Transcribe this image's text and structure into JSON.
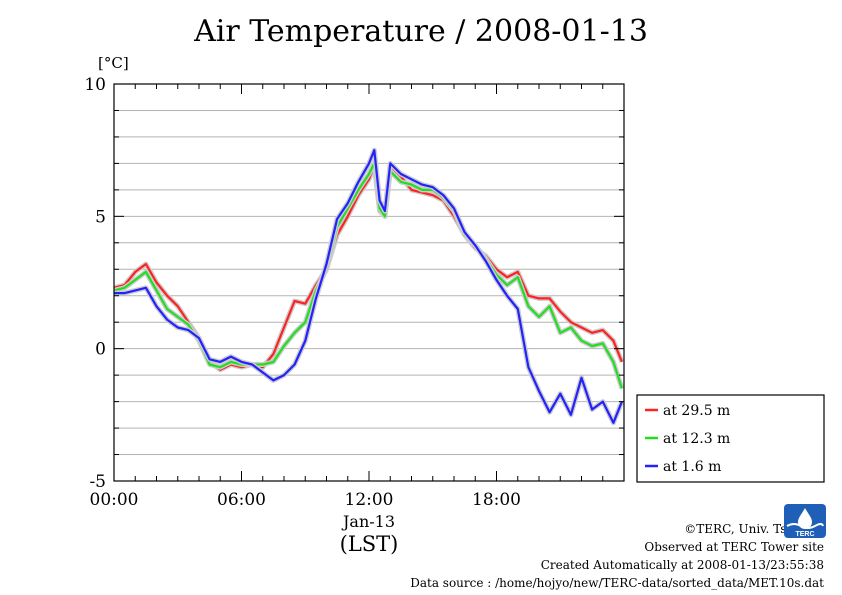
{
  "title": "Air Temperature / 2008-01-13",
  "ylabel": "[°C]",
  "footer": {
    "copyright": "©TERC, Univ. Tsukuba",
    "observed": "Observed at TERC Tower site",
    "created": "Created Automatically at 2008-01-13/23:55:38",
    "source": "Data source : /home/hojyo/new/TERC-data/sorted_data/MET.10s.dat"
  },
  "logo": {
    "icon": "terc-logo-icon",
    "text": "TERC",
    "color": "#1f5fb8"
  },
  "chart_data": {
    "type": "line",
    "xlim": [
      0,
      24
    ],
    "ylim": [
      -5,
      10
    ],
    "x_ticks": [
      0,
      6,
      12,
      18
    ],
    "x_tick_labels": [
      "00:00",
      "06:00",
      "12:00",
      "18:00"
    ],
    "x_date_label": "Jan-13",
    "x_unit_label": "(LST)",
    "y_ticks": [
      -5,
      0,
      5,
      10
    ],
    "y_tick_labels": [
      "-5",
      "0",
      "5",
      "10"
    ],
    "y_minor_step": 1,
    "grid": true,
    "legend_position": "right",
    "series": [
      {
        "name": "at 29.5 m",
        "color": "#ff2222",
        "x": [
          0,
          0.5,
          1,
          1.5,
          2,
          2.5,
          3,
          3.5,
          4,
          4.5,
          5,
          5.5,
          6,
          6.5,
          7,
          7.5,
          8,
          8.5,
          9,
          9.5,
          10,
          10.5,
          11,
          11.5,
          12,
          12.25,
          12.5,
          12.75,
          13,
          13.5,
          14,
          14.5,
          15,
          15.5,
          16,
          16.5,
          17,
          17.5,
          18,
          18.5,
          19,
          19.5,
          20,
          20.5,
          21,
          21.5,
          22,
          22.5,
          23,
          23.5,
          23.9
        ],
        "values": [
          2.3,
          2.4,
          2.9,
          3.2,
          2.5,
          2.0,
          1.6,
          1.0,
          0.4,
          -0.5,
          -0.8,
          -0.6,
          -0.7,
          -0.6,
          -0.7,
          -0.2,
          0.8,
          1.8,
          1.7,
          2.4,
          3.0,
          4.3,
          5.0,
          5.8,
          6.4,
          6.9,
          5.2,
          5.0,
          6.9,
          6.5,
          6.0,
          5.9,
          5.8,
          5.6,
          5.0,
          4.3,
          3.8,
          3.5,
          3.0,
          2.7,
          2.9,
          2.0,
          1.9,
          1.9,
          1.4,
          1.0,
          0.8,
          0.6,
          0.7,
          0.3,
          -0.5
        ]
      },
      {
        "name": "at 12.3 m",
        "color": "#22dd22",
        "x": [
          0,
          0.5,
          1,
          1.5,
          2,
          2.5,
          3,
          3.5,
          4,
          4.5,
          5,
          5.5,
          6,
          6.5,
          7,
          7.5,
          8,
          8.5,
          9,
          9.5,
          10,
          10.5,
          11,
          11.5,
          12,
          12.25,
          12.5,
          12.75,
          13,
          13.5,
          14,
          14.5,
          15,
          15.5,
          16,
          16.5,
          17,
          17.5,
          18,
          18.5,
          19,
          19.5,
          20,
          20.5,
          21,
          21.5,
          22,
          22.5,
          23,
          23.5,
          23.9
        ],
        "values": [
          2.2,
          2.3,
          2.6,
          2.9,
          2.2,
          1.5,
          1.2,
          0.9,
          0.3,
          -0.6,
          -0.7,
          -0.5,
          -0.6,
          -0.6,
          -0.6,
          -0.5,
          0.1,
          0.6,
          1.0,
          2.2,
          3.0,
          4.6,
          5.3,
          6.0,
          6.6,
          7.0,
          5.3,
          5.0,
          6.7,
          6.3,
          6.2,
          6.0,
          6.0,
          5.7,
          5.2,
          4.3,
          3.9,
          3.4,
          2.8,
          2.4,
          2.7,
          1.6,
          1.2,
          1.6,
          0.6,
          0.8,
          0.3,
          0.1,
          0.2,
          -0.5,
          -1.5
        ]
      },
      {
        "name": "at 1.6 m",
        "color": "#2222ff",
        "x": [
          0,
          0.5,
          1,
          1.5,
          2,
          2.5,
          3,
          3.5,
          4,
          4.5,
          5,
          5.5,
          6,
          6.5,
          7,
          7.5,
          8,
          8.5,
          9,
          9.5,
          10,
          10.5,
          11,
          11.5,
          12,
          12.25,
          12.5,
          12.75,
          13,
          13.5,
          14,
          14.5,
          15,
          15.5,
          16,
          16.5,
          17,
          17.5,
          18,
          18.5,
          19,
          19.5,
          20,
          20.5,
          21,
          21.5,
          22,
          22.5,
          23,
          23.5,
          23.9
        ],
        "values": [
          2.1,
          2.1,
          2.2,
          2.3,
          1.6,
          1.1,
          0.8,
          0.7,
          0.4,
          -0.4,
          -0.5,
          -0.3,
          -0.5,
          -0.6,
          -0.9,
          -1.2,
          -1.0,
          -0.6,
          0.3,
          1.9,
          3.2,
          4.9,
          5.5,
          6.3,
          7.0,
          7.5,
          5.6,
          5.2,
          7.0,
          6.6,
          6.4,
          6.2,
          6.1,
          5.8,
          5.3,
          4.4,
          3.9,
          3.3,
          2.6,
          2.0,
          1.5,
          -0.7,
          -1.6,
          -2.4,
          -1.7,
          -2.5,
          -1.1,
          -2.3,
          -2.0,
          -2.8,
          -2.0
        ]
      }
    ]
  }
}
